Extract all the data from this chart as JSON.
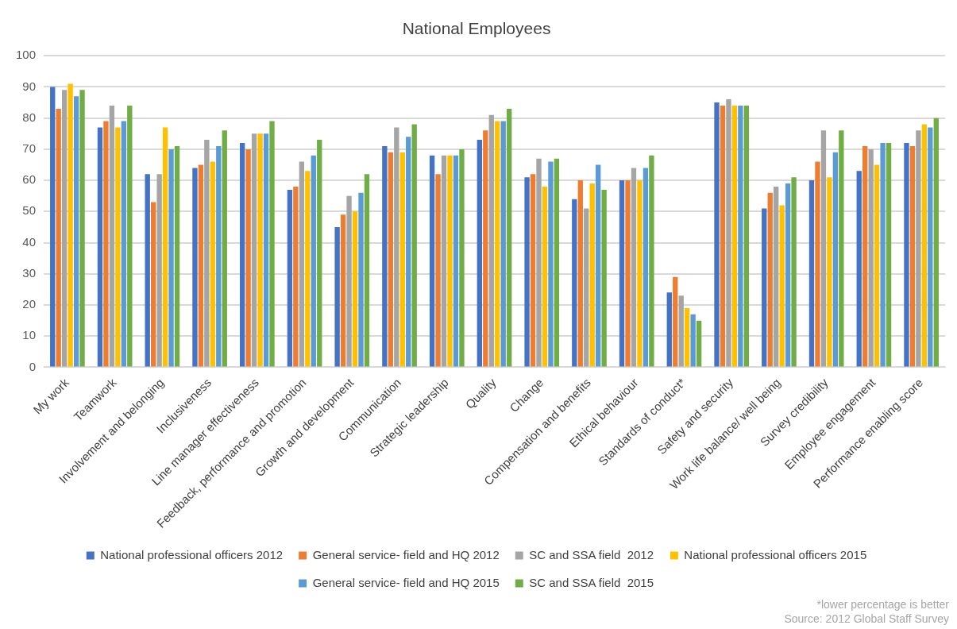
{
  "chart_data": {
    "type": "bar",
    "title": "National Employees",
    "categories": [
      "My work",
      "Teamwork",
      "Involvement and belonging",
      "Inclusiveness",
      "Line manager effectiveness",
      "Feedback, performance and promotion",
      "Growth and development",
      "Communication",
      "Strategic leadership",
      "Quality",
      "Change",
      "Compensation and benefits",
      "Ethical behaviour",
      "Standards of conduct*",
      "Safety and security",
      "Work life balance/ well being",
      "Survey credibility",
      "Employee engagement",
      "Performance enabling score"
    ],
    "series": [
      {
        "name": "National professional officers 2012",
        "color": "#4472c4",
        "values": [
          90,
          77,
          62,
          64,
          72,
          57,
          45,
          71,
          68,
          73,
          61,
          54,
          60,
          24,
          85,
          51,
          60,
          63,
          72
        ]
      },
      {
        "name": "General service- field and HQ 2012",
        "color": "#ed7d31",
        "values": [
          83,
          79,
          53,
          65,
          70,
          58,
          49,
          69,
          62,
          76,
          62,
          60,
          60,
          29,
          84,
          56,
          66,
          71,
          71
        ]
      },
      {
        "name": "SC and SSA field  2012",
        "color": "#a5a5a5",
        "values": [
          89,
          84,
          62,
          73,
          75,
          66,
          55,
          77,
          68,
          81,
          67,
          51,
          64,
          23,
          86,
          58,
          76,
          70,
          76
        ]
      },
      {
        "name": "National professional officers 2015",
        "color": "#ffc000",
        "values": [
          91,
          77,
          77,
          66,
          75,
          63,
          50,
          69,
          68,
          79,
          58,
          59,
          60,
          19,
          84,
          52,
          61,
          65,
          78
        ]
      },
      {
        "name": "General service- field and HQ 2015",
        "color": "#5b9bd5",
        "values": [
          87,
          79,
          70,
          71,
          75,
          68,
          56,
          74,
          68,
          79,
          66,
          65,
          64,
          17,
          84,
          59,
          69,
          72,
          77
        ]
      },
      {
        "name": "SC and SSA field  2015",
        "color": "#70ad47",
        "values": [
          89,
          84,
          71,
          76,
          79,
          73,
          62,
          78,
          70,
          83,
          67,
          57,
          68,
          15,
          84,
          61,
          76,
          72,
          80
        ]
      }
    ],
    "ylim": [
      0,
      100
    ],
    "yticks": [
      0,
      10,
      20,
      30,
      40,
      50,
      60,
      70,
      80,
      90,
      100
    ],
    "grid": "y",
    "legend": "bottom",
    "annotations": [
      "*lower percentage is better",
      "Source: 2012 Global Staff Survey"
    ]
  }
}
